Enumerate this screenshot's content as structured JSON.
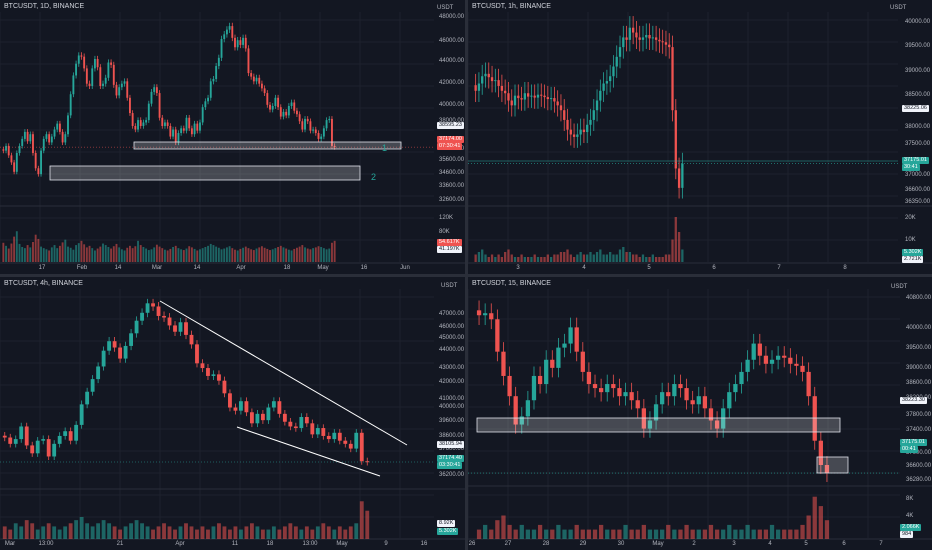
{
  "colors": {
    "up": "#26a69a",
    "down": "#ef5350",
    "background": "#131722",
    "grid": "#1e222d",
    "axis_text": "#b2b5be"
  },
  "panes": [
    {
      "id": "tl",
      "title": "BTCUSDT, 1D, BINANCE",
      "currency": "USDT",
      "y_ticks": [
        "48000.00",
        "46000.00",
        "44000.00",
        "42000.00",
        "40000.00",
        "38000.00",
        "37600.00",
        "35600.00",
        "34600.00",
        "33600.00",
        "32600.00"
      ],
      "x_ticks": [
        "17",
        "Feb",
        "14",
        "Mar",
        "14",
        "Apr",
        "18",
        "May",
        "16",
        "Jun"
      ],
      "vol_ticks": [
        "120K",
        "80K",
        "40K"
      ],
      "price_badges": [
        "38595.23",
        "37174.00",
        "07:30:41"
      ],
      "vol_badges": [
        "54.617K",
        "41.197K"
      ],
      "labels": [
        "1",
        "2"
      ]
    },
    {
      "id": "tr",
      "title": "BTCUSDT, 1h, BINANCE",
      "currency": "USDT",
      "y_ticks": [
        "40000.00",
        "39500.00",
        "39000.00",
        "38500.00",
        "38000.00",
        "37500.00",
        "37000.00",
        "36600.00",
        "36350.00"
      ],
      "x_ticks": [
        "3",
        "4",
        "5",
        "6",
        "7",
        "8"
      ],
      "vol_ticks": [
        "20K",
        "10K"
      ],
      "price_badges": [
        "38225.06",
        "37175.01",
        "30:41"
      ],
      "vol_badges": [
        "5.302K",
        "2.721K"
      ]
    },
    {
      "id": "bl",
      "title": "BTCUSDT, 4h, BINANCE",
      "currency": "USDT",
      "y_ticks": [
        "47000.00",
        "46000.00",
        "45000.00",
        "44000.00",
        "43000.00",
        "42000.00",
        "41000.00",
        "40000.00",
        "39600.00",
        "38600.00",
        "37600.00",
        "36200.00"
      ],
      "x_ticks": [
        "Mar",
        "13:00",
        "21",
        "Apr",
        "11",
        "18",
        "13:00",
        "May",
        "9",
        "16"
      ],
      "vol_ticks": [],
      "price_badges": [
        "38105.94",
        "37174.40",
        "03:30:41"
      ],
      "vol_badges": [
        "8.92K",
        "5.302K"
      ]
    },
    {
      "id": "br",
      "title": "BTCUSDT, 15, BINANCE",
      "currency": "USDT",
      "y_ticks": [
        "40800.00",
        "40000.00",
        "39500.00",
        "39000.00",
        "38600.00",
        "38200.00",
        "37800.00",
        "37400.00",
        "37000.00",
        "36600.00",
        "36280.00"
      ],
      "x_ticks": [
        "26",
        "27",
        "28",
        "29",
        "30",
        "May",
        "2",
        "3",
        "4",
        "5",
        "6",
        "7"
      ],
      "vol_ticks": [
        "8K",
        "4K"
      ],
      "price_badges": [
        "38223.30",
        "37175.01",
        "00:41"
      ],
      "vol_badges": [
        "2.066K",
        "984"
      ]
    }
  ],
  "chart_data": [
    {
      "type": "candlestick",
      "title": "BTCUSDT, 1D, BINANCE",
      "close_series": [
        36800,
        37200,
        36400,
        35800,
        35000,
        36600,
        37200,
        37800,
        38400,
        37600,
        38200,
        36600,
        35300,
        34800,
        36800,
        37800,
        38200,
        37500,
        38000,
        38600,
        39100,
        38400,
        37500,
        38200,
        39800,
        41600,
        43200,
        44200,
        44900,
        44800,
        43800,
        42500,
        42300,
        43800,
        44600,
        43900,
        42300,
        42500,
        43000,
        44300,
        44100,
        42400,
        41500,
        42200,
        42500,
        42700,
        41300,
        40000,
        38900,
        38600,
        39400,
        38900,
        39200,
        39400,
        40800,
        41800,
        42200,
        41700,
        39600,
        38900,
        39200,
        38900,
        38000,
        38600,
        37500,
        38300,
        38700,
        38500,
        39600,
        38700,
        38200,
        39100,
        38500,
        39200,
        40500,
        41000,
        41300,
        42700,
        42900,
        44000,
        44700,
        46300,
        46700,
        47100,
        47400,
        46400,
        45600,
        46200,
        45800,
        46400,
        45500,
        43400,
        43100,
        42700,
        43000,
        42500,
        42100,
        41700,
        40700,
        40300,
        40600,
        41300,
        40500,
        39700,
        40100,
        39800,
        40600,
        40900,
        40200,
        39900,
        39300,
        38600,
        39500,
        39300,
        38500,
        38600,
        38300,
        37800,
        38000,
        38700,
        39400,
        39500,
        37200,
        37100
      ],
      "volume_series": [
        50,
        42,
        35,
        48,
        66,
        80,
        47,
        39,
        36,
        44,
        38,
        52,
        71,
        60,
        40,
        36,
        33,
        30,
        38,
        44,
        36,
        42,
        51,
        58,
        40,
        37,
        32,
        44,
        49,
        55,
        46,
        38,
        42,
        36,
        30,
        35,
        40,
        48,
        44,
        39,
        35,
        41,
        47,
        38,
        33,
        30,
        37,
        42,
        36,
        41,
        55,
        44,
        39,
        35,
        31,
        33,
        38,
        45,
        40,
        36,
        32,
        30,
        34,
        39,
        42,
        36,
        33,
        31,
        35,
        41,
        38,
        34,
        30,
        33,
        36,
        39,
        42,
        47,
        44,
        40,
        37,
        33,
        35,
        38,
        41,
        36,
        32,
        30,
        34,
        37,
        40,
        36,
        33,
        31,
        35,
        38,
        41,
        37,
        34,
        31,
        33,
        36,
        39,
        42,
        38,
        35,
        32,
        30,
        34,
        37,
        40,
        44,
        38,
        35,
        33,
        36,
        38,
        41,
        39,
        36,
        33,
        35,
        50,
        55
      ]
    },
    {
      "type": "candlestick",
      "title": "BTCUSDT, 1h, BINANCE",
      "close_series": [
        38600,
        38750,
        38900,
        38950,
        38880,
        38800,
        38820,
        38700,
        38600,
        38550,
        38400,
        38300,
        38500,
        38450,
        38420,
        38550,
        38480,
        38500,
        38460,
        38520,
        38500,
        38470,
        38430,
        38450,
        38380,
        38300,
        38200,
        38000,
        37800,
        37700,
        37650,
        37700,
        37800,
        37750,
        37900,
        38000,
        38200,
        38400,
        38600,
        38750,
        38800,
        38900,
        39100,
        39300,
        39500,
        39700,
        39650,
        39900,
        39800,
        39700,
        39650,
        39700,
        39750,
        39680,
        39700,
        39650,
        39620,
        39600,
        39550,
        39500,
        38200,
        37000,
        36600,
        37100
      ],
      "volume_series": [
        3,
        4,
        5,
        3,
        2,
        3,
        2,
        3,
        2,
        4,
        5,
        3,
        2,
        2,
        3,
        2,
        2,
        2,
        3,
        2,
        2,
        2,
        3,
        2,
        3,
        3,
        4,
        4,
        5,
        3,
        2,
        3,
        4,
        3,
        3,
        4,
        3,
        4,
        5,
        3,
        3,
        4,
        3,
        3,
        5,
        6,
        4,
        4,
        3,
        3,
        2,
        3,
        2,
        2,
        3,
        2,
        2,
        2,
        3,
        3,
        9,
        18,
        12,
        5
      ]
    },
    {
      "type": "candlestick",
      "title": "BTCUSDT, 4h, BINANCE",
      "close_series": [
        38700,
        38300,
        38600,
        39400,
        38200,
        37700,
        38500,
        38600,
        37500,
        38300,
        38800,
        39100,
        38500,
        39500,
        40800,
        41600,
        42400,
        43200,
        44200,
        44800,
        44400,
        43700,
        44500,
        45300,
        46100,
        46600,
        47200,
        47000,
        46400,
        46300,
        45800,
        45400,
        46000,
        45200,
        44600,
        43400,
        43100,
        42600,
        42700,
        42300,
        41500,
        40600,
        40400,
        41000,
        40300,
        39600,
        40200,
        39800,
        40600,
        41000,
        40200,
        39700,
        39400,
        39300,
        40000,
        39600,
        38900,
        39300,
        38800,
        38600,
        39000,
        38500,
        38300,
        38000,
        39000,
        37200,
        37150
      ],
      "volume_series": [
        4,
        3,
        5,
        4,
        6,
        5,
        3,
        4,
        5,
        4,
        3,
        4,
        5,
        6,
        7,
        5,
        4,
        5,
        6,
        5,
        4,
        3,
        4,
        5,
        6,
        5,
        4,
        3,
        4,
        5,
        4,
        3,
        4,
        5,
        4,
        3,
        4,
        3,
        4,
        5,
        4,
        3,
        4,
        3,
        4,
        5,
        4,
        3,
        3,
        4,
        3,
        4,
        5,
        4,
        3,
        4,
        3,
        4,
        5,
        4,
        3,
        4,
        3,
        4,
        5,
        12,
        9
      ]
    },
    {
      "type": "candlestick",
      "title": "BTCUSDT, 15, BINANCE",
      "close_series": [
        40400,
        40450,
        40300,
        39500,
        38900,
        38400,
        37700,
        37900,
        38300,
        38900,
        38700,
        39300,
        39100,
        39600,
        39700,
        40100,
        39500,
        39000,
        38700,
        38600,
        38500,
        38700,
        38600,
        38400,
        38500,
        38300,
        38100,
        37600,
        37800,
        38200,
        38500,
        38400,
        38700,
        38600,
        38300,
        38200,
        38400,
        38100,
        37800,
        37600,
        38100,
        38500,
        38700,
        39000,
        39300,
        39700,
        39400,
        39200,
        39300,
        39400,
        39350,
        39200,
        39150,
        39000,
        38400,
        37300,
        36700,
        36500
      ],
      "volume_series": [
        2,
        3,
        2,
        4,
        5,
        3,
        2,
        3,
        2,
        2,
        3,
        2,
        2,
        3,
        2,
        2,
        3,
        2,
        2,
        2,
        3,
        2,
        2,
        2,
        3,
        2,
        2,
        3,
        2,
        2,
        2,
        3,
        2,
        2,
        3,
        2,
        2,
        2,
        3,
        2,
        2,
        3,
        2,
        2,
        3,
        2,
        2,
        2,
        3,
        2,
        2,
        2,
        2,
        3,
        5,
        9,
        7,
        4
      ]
    }
  ]
}
